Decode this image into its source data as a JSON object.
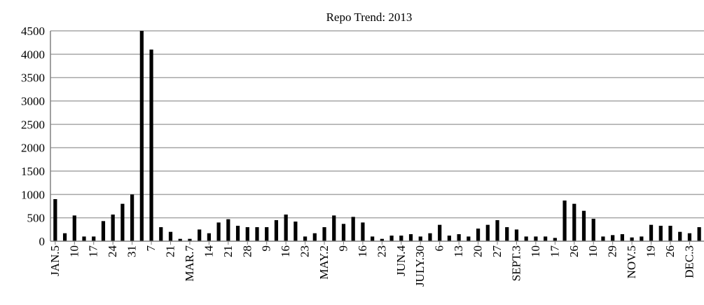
{
  "chart_data": {
    "type": "bar",
    "title": "Repo Trend: 2013",
    "xlabel": "",
    "ylabel": "",
    "ylim": [
      0,
      4500
    ],
    "yticks": [
      0,
      500,
      1000,
      1500,
      2000,
      2500,
      3000,
      3500,
      4000,
      4500
    ],
    "grid": "horizontal",
    "legend": "none",
    "bar_color": "#000000",
    "grid_color": "#a6a6a6",
    "values": [
      900,
      170,
      550,
      100,
      100,
      430,
      570,
      800,
      1000,
      4500,
      4100,
      300,
      200,
      50,
      50,
      250,
      170,
      400,
      470,
      330,
      300,
      300,
      300,
      450,
      570,
      420,
      100,
      170,
      300,
      550,
      370,
      520,
      400,
      100,
      50,
      120,
      120,
      150,
      100,
      170,
      350,
      120,
      150,
      100,
      270,
      350,
      450,
      300,
      250,
      100,
      100,
      100,
      70,
      870,
      800,
      650,
      480,
      100,
      130,
      150,
      80,
      100,
      350,
      330,
      330,
      200,
      170,
      300
    ],
    "x_labels": [
      {
        "index": 0,
        "text": "JAN.5"
      },
      {
        "index": 2,
        "text": "10"
      },
      {
        "index": 4,
        "text": "17"
      },
      {
        "index": 6,
        "text": "24"
      },
      {
        "index": 8,
        "text": "31"
      },
      {
        "index": 10,
        "text": "7"
      },
      {
        "index": 12,
        "text": "21"
      },
      {
        "index": 14,
        "text": "MAR.7"
      },
      {
        "index": 16,
        "text": "14"
      },
      {
        "index": 18,
        "text": "21"
      },
      {
        "index": 20,
        "text": "28"
      },
      {
        "index": 22,
        "text": "9"
      },
      {
        "index": 24,
        "text": "16"
      },
      {
        "index": 26,
        "text": "23"
      },
      {
        "index": 28,
        "text": "MAY.2"
      },
      {
        "index": 30,
        "text": "9"
      },
      {
        "index": 32,
        "text": "16"
      },
      {
        "index": 34,
        "text": "23"
      },
      {
        "index": 36,
        "text": "JUN.4"
      },
      {
        "index": 38,
        "text": "JULY.30"
      },
      {
        "index": 40,
        "text": "6"
      },
      {
        "index": 42,
        "text": "13"
      },
      {
        "index": 44,
        "text": "20"
      },
      {
        "index": 46,
        "text": "27"
      },
      {
        "index": 48,
        "text": "SEPT.3"
      },
      {
        "index": 50,
        "text": "10"
      },
      {
        "index": 52,
        "text": "17"
      },
      {
        "index": 54,
        "text": "26"
      },
      {
        "index": 56,
        "text": "10"
      },
      {
        "index": 58,
        "text": "29"
      },
      {
        "index": 60,
        "text": "NOV.5"
      },
      {
        "index": 62,
        "text": "19"
      },
      {
        "index": 64,
        "text": "26"
      },
      {
        "index": 66,
        "text": "DEC.3"
      }
    ]
  }
}
